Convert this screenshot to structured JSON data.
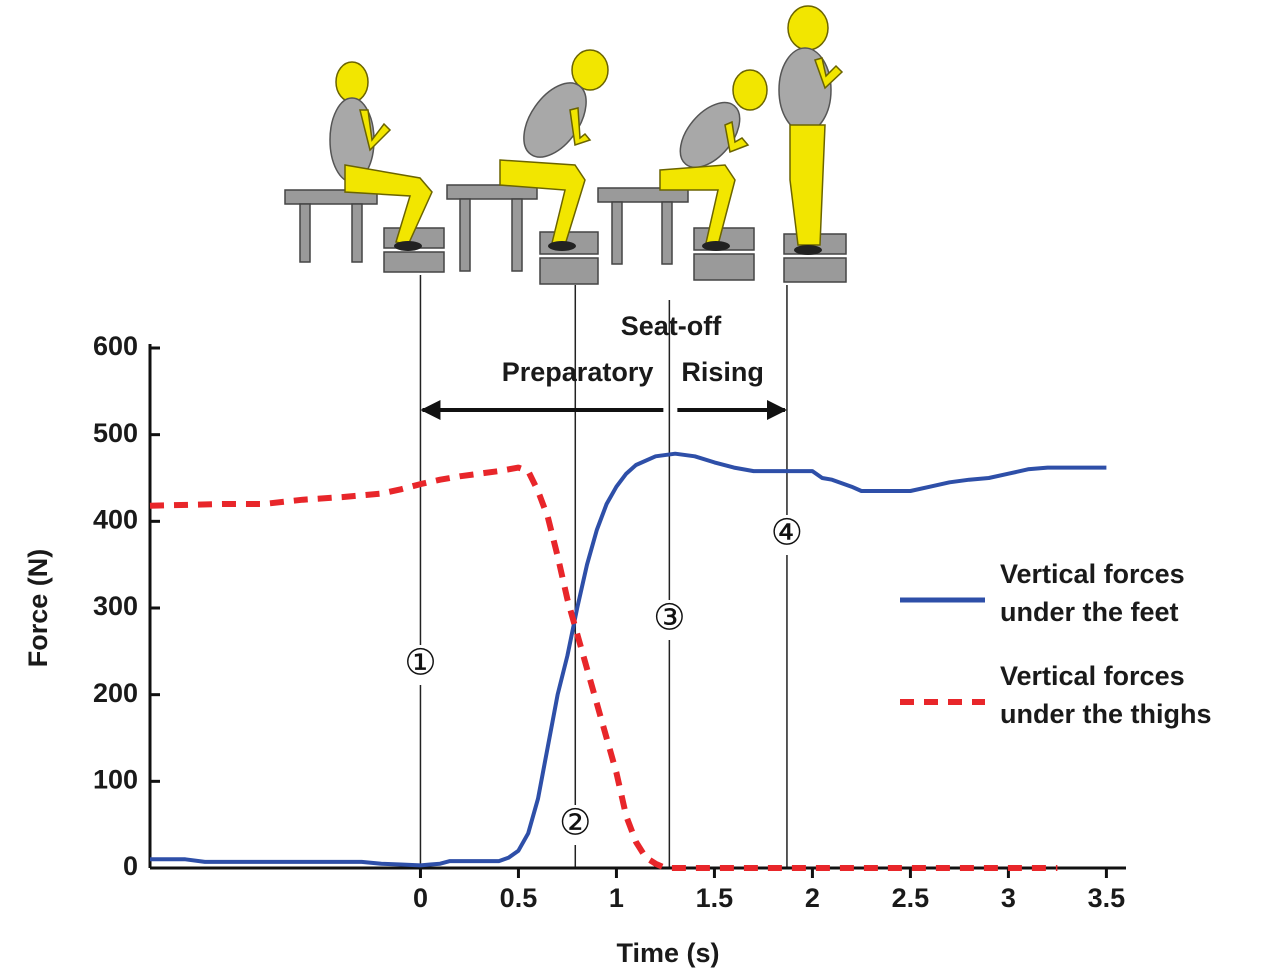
{
  "chart_data": {
    "type": "line",
    "x_label": "Time (s)",
    "y_label": "Force (N)",
    "xlim": [
      -1.38,
      3.6
    ],
    "ylim": [
      0,
      600
    ],
    "xticks": [
      0,
      0.5,
      1,
      1.5,
      2,
      2.5,
      3,
      3.5
    ],
    "yticks": [
      0,
      100,
      200,
      300,
      400,
      500,
      600
    ],
    "series": [
      {
        "name": "Vertical forces under the feet",
        "color": "#2e4fa8",
        "style": "solid",
        "x": [
          -1.38,
          -1.2,
          -1.1,
          -0.3,
          -0.2,
          -0.1,
          0,
          0.05,
          0.1,
          0.15,
          0.3,
          0.4,
          0.45,
          0.5,
          0.55,
          0.6,
          0.65,
          0.7,
          0.75,
          0.8,
          0.85,
          0.9,
          0.95,
          1.0,
          1.05,
          1.1,
          1.2,
          1.3,
          1.4,
          1.5,
          1.6,
          1.7,
          1.8,
          1.9,
          2.0,
          2.05,
          2.1,
          2.2,
          2.25,
          2.35,
          2.5,
          2.6,
          2.7,
          2.8,
          2.9,
          3.0,
          3.1,
          3.2,
          3.5
        ],
        "values": [
          10,
          10,
          7,
          7,
          5,
          4,
          3,
          4,
          5,
          8,
          8,
          8,
          12,
          20,
          40,
          80,
          140,
          200,
          245,
          300,
          350,
          390,
          420,
          440,
          455,
          465,
          475,
          478,
          475,
          468,
          462,
          458,
          458,
          458,
          458,
          450,
          448,
          440,
          435,
          435,
          435,
          440,
          445,
          448,
          450,
          455,
          460,
          462,
          462
        ]
      },
      {
        "name": "Vertical forces under the thighs",
        "color": "#e8262a",
        "style": "dashed",
        "x": [
          -1.38,
          -1.0,
          -0.8,
          -0.6,
          -0.4,
          -0.2,
          -0.1,
          0,
          0.1,
          0.2,
          0.3,
          0.4,
          0.5,
          0.55,
          0.6,
          0.65,
          0.7,
          0.75,
          0.8,
          0.85,
          0.9,
          0.95,
          1.0,
          1.05,
          1.1,
          1.15,
          1.2,
          1.25,
          1.4,
          3.25
        ],
        "values": [
          418,
          420,
          420,
          425,
          428,
          432,
          437,
          443,
          448,
          452,
          455,
          458,
          462,
          458,
          435,
          405,
          360,
          310,
          270,
          230,
          190,
          150,
          110,
          60,
          30,
          12,
          5,
          0,
          0,
          0
        ]
      }
    ],
    "events": [
      {
        "x": 0,
        "label": "①"
      },
      {
        "x": 0.79,
        "label": "②"
      },
      {
        "x": 1.27,
        "label": "③"
      },
      {
        "x": 1.87,
        "label": "④"
      }
    ],
    "seat_off_label": "Seat-off",
    "phases": [
      "Preparatory",
      "Rising"
    ]
  }
}
